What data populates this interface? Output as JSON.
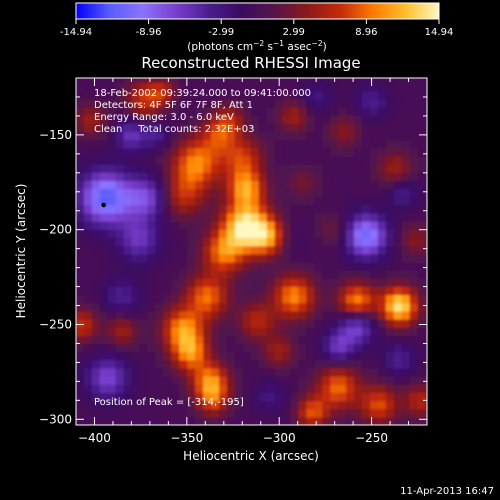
{
  "chart_data": {
    "type": "heatmap",
    "title": "Reconstructed RHESSI Image",
    "xlabel": "Heliocentric X (arcsec)",
    "ylabel": "Heliocentric Y (arcsec)",
    "xlim": [
      -410,
      -220
    ],
    "ylim": [
      -303,
      -120
    ],
    "x_ticks": [
      -400,
      -350,
      -300,
      -250
    ],
    "y_ticks": [
      -300,
      -250,
      -200,
      -150
    ],
    "colorbar": {
      "range": [
        -14.94,
        14.94
      ],
      "ticks": [
        "-14.94",
        "-8.96",
        "-2.99",
        "2.99",
        "8.96",
        "14.94"
      ],
      "unit_label": {
        "pre": "(photons cm",
        "sup1": "−2",
        "mid1": " s",
        "sup2": "−1",
        "mid2": " asec",
        "sup3": "−2",
        "post": ")"
      },
      "stops": [
        "#0000ff",
        "#5a5aff",
        "#8a73ff",
        "#7b3fd0",
        "#4b1e90",
        "#3a0a62",
        "#55154a",
        "#8a1a1a",
        "#c4290a",
        "#ff7a00",
        "#ffc030",
        "#fff8c0"
      ]
    },
    "annotations": [
      "18-Feb-2002 09:39:24.000 to 09:41:00.000",
      "Detectors: 4F 5F 6F 7F 8F, Att 1",
      "Energy Range: 3.0 - 6.0 keV",
      "Clean     Total counts: 2.32E+03"
    ],
    "peak_label": "Position of Peak = [-314,-195]",
    "peak": {
      "x": -314,
      "y": -195
    },
    "marker": {
      "x": -395,
      "y": -187
    },
    "blobs": [
      {
        "x": -318,
        "y": -198,
        "v": 14.5,
        "r": 9
      },
      {
        "x": -305,
        "y": -204,
        "v": 10,
        "r": 7
      },
      {
        "x": -330,
        "y": -212,
        "v": 9,
        "r": 8
      },
      {
        "x": -318,
        "y": -178,
        "v": 10,
        "r": 7
      },
      {
        "x": -320,
        "y": -162,
        "v": 7,
        "r": 8
      },
      {
        "x": -333,
        "y": -150,
        "v": 6,
        "r": 7
      },
      {
        "x": -327,
        "y": -142,
        "v": 5,
        "r": 6
      },
      {
        "x": -345,
        "y": -165,
        "v": 10,
        "r": 9
      },
      {
        "x": -352,
        "y": -182,
        "v": 6,
        "r": 8
      },
      {
        "x": -339,
        "y": -235,
        "v": 9,
        "r": 8
      },
      {
        "x": -352,
        "y": -252,
        "v": 10,
        "r": 8
      },
      {
        "x": -348,
        "y": -265,
        "v": 9,
        "r": 7
      },
      {
        "x": -337,
        "y": -280,
        "v": 10,
        "r": 7
      },
      {
        "x": -336,
        "y": -290,
        "v": 6,
        "r": 6
      },
      {
        "x": -312,
        "y": -248,
        "v": 6,
        "r": 7
      },
      {
        "x": -300,
        "y": -264,
        "v": 5,
        "r": 6
      },
      {
        "x": -292,
        "y": -235,
        "v": 10,
        "r": 8
      },
      {
        "x": -258,
        "y": -238,
        "v": 11,
        "r": 7
      },
      {
        "x": -235,
        "y": -240,
        "v": 14,
        "r": 7
      },
      {
        "x": -268,
        "y": -283,
        "v": 9,
        "r": 8
      },
      {
        "x": -246,
        "y": -292,
        "v": 8,
        "r": 7
      },
      {
        "x": -282,
        "y": -296,
        "v": 8,
        "r": 6
      },
      {
        "x": -224,
        "y": -290,
        "v": 6,
        "r": 6
      },
      {
        "x": -407,
        "y": -250,
        "v": 7,
        "r": 6
      },
      {
        "x": -385,
        "y": -253,
        "v": 5,
        "r": 6
      },
      {
        "x": -402,
        "y": -142,
        "v": 5,
        "r": 6
      },
      {
        "x": -373,
        "y": -131,
        "v": 7,
        "r": 7
      },
      {
        "x": -363,
        "y": -127,
        "v": 5,
        "r": 5
      },
      {
        "x": -292,
        "y": -140,
        "v": 5,
        "r": 6
      },
      {
        "x": -265,
        "y": -148,
        "v": 4,
        "r": 6
      },
      {
        "x": -237,
        "y": -168,
        "v": 5,
        "r": 7
      },
      {
        "x": -226,
        "y": -205,
        "v": 4,
        "r": 6
      },
      {
        "x": -287,
        "y": -175,
        "v": 3,
        "r": 6
      },
      {
        "x": -270,
        "y": -200,
        "v": 3,
        "r": 6
      },
      {
        "x": -394,
        "y": -183,
        "v": -12,
        "r": 10
      },
      {
        "x": -372,
        "y": -183,
        "v": -7,
        "r": 8
      },
      {
        "x": -376,
        "y": -205,
        "v": -6,
        "r": 8
      },
      {
        "x": -380,
        "y": -150,
        "v": -6,
        "r": 6
      },
      {
        "x": -366,
        "y": -150,
        "v": -4,
        "r": 5
      },
      {
        "x": -393,
        "y": -278,
        "v": -7,
        "r": 8
      },
      {
        "x": -385,
        "y": -235,
        "v": -4,
        "r": 7
      },
      {
        "x": -253,
        "y": -203,
        "v": -11,
        "r": 8
      },
      {
        "x": -258,
        "y": -250,
        "v": -8,
        "r": 7
      },
      {
        "x": -268,
        "y": -262,
        "v": -6,
        "r": 6
      },
      {
        "x": -298,
        "y": -205,
        "v": -3,
        "r": 7
      },
      {
        "x": -235,
        "y": -268,
        "v": -4,
        "r": 6
      },
      {
        "x": -233,
        "y": -180,
        "v": -4,
        "r": 6
      },
      {
        "x": -250,
        "y": -132,
        "v": -4,
        "r": 6
      },
      {
        "x": -305,
        "y": -288,
        "v": -3,
        "r": 6
      },
      {
        "x": -280,
        "y": -130,
        "v": -3,
        "r": 6
      }
    ]
  },
  "footer": {
    "date": "11-Apr-2013 16:47"
  }
}
